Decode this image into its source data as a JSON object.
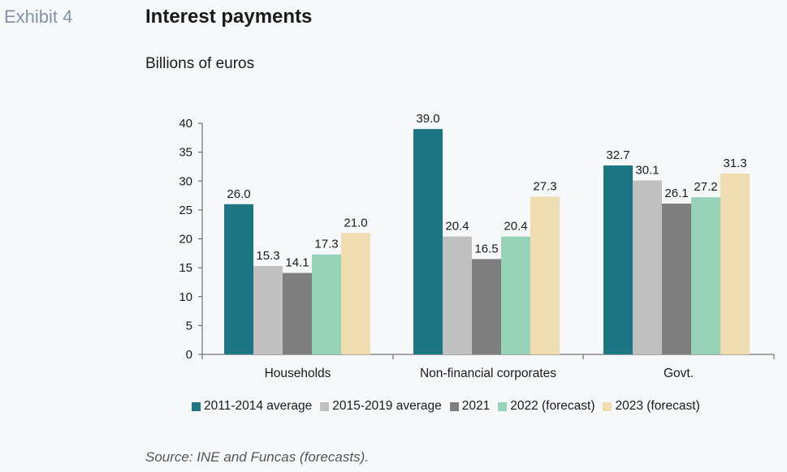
{
  "header": {
    "exhibit": "Exhibit 4",
    "title": "Interest payments",
    "subtitle": "Billions of euros"
  },
  "source": "Source: INE and Funcas (forecasts).",
  "chart_data": {
    "type": "bar",
    "title": "Interest payments",
    "subtitle": "Billions of euros",
    "xlabel": "",
    "ylabel": "",
    "ylim": [
      0,
      40
    ],
    "yticks": [
      0,
      5,
      10,
      15,
      20,
      25,
      30,
      35,
      40
    ],
    "categories": [
      "Households",
      "Non-financial corporates",
      "Govt."
    ],
    "series": [
      {
        "name": "2011-2014 average",
        "color": "#1d7683",
        "values": [
          26.0,
          39.0,
          32.7
        ]
      },
      {
        "name": "2015-2019 average",
        "color": "#c0c0c0",
        "values": [
          15.3,
          20.4,
          30.1
        ]
      },
      {
        "name": "2021",
        "color": "#7f7f7f",
        "values": [
          14.1,
          16.5,
          26.1
        ]
      },
      {
        "name": "2022 (forecast)",
        "color": "#96d3b9",
        "values": [
          17.3,
          20.4,
          27.2
        ]
      },
      {
        "name": "2023 (forecast)",
        "color": "#efdcb0",
        "values": [
          21.0,
          27.3,
          31.3
        ]
      }
    ],
    "data_labels": true,
    "grid": false,
    "legend_position": "bottom"
  }
}
